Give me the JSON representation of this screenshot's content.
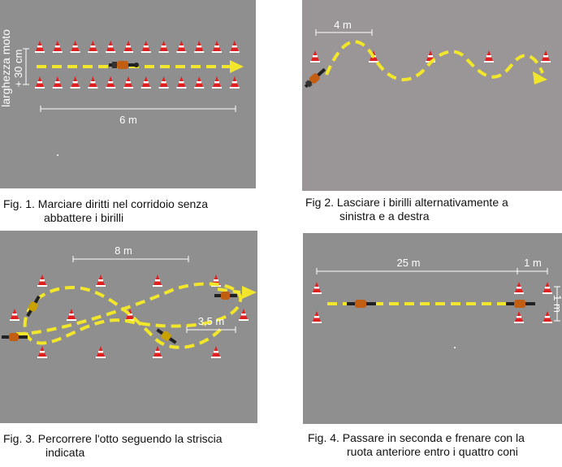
{
  "figures": [
    {
      "id": "fig1",
      "caption_line1": "Fig. 1. Marciare diritti nel corridoio senza",
      "caption_line2": "abbattere i birilli",
      "labels": {
        "width_label": "larghezza moto",
        "width_plus": "+ 30 cm",
        "length": "6 m"
      }
    },
    {
      "id": "fig2",
      "caption_line1": "Fig 2. Lasciare i birilli alternativamente a",
      "caption_line2": "sinistra e a destra",
      "labels": {
        "spacing": "4 m"
      }
    },
    {
      "id": "fig3",
      "caption_line1": "Fig. 3. Percorrere l'otto seguendo la striscia",
      "caption_line2": "indicata",
      "labels": {
        "length": "8 m",
        "width": "3,5 m"
      }
    },
    {
      "id": "fig4",
      "caption_line1": "Fig. 4. Passare in seconda e frenare con la",
      "caption_line2": "ruota anteriore entro i quattro coni",
      "labels": {
        "distance": "25 m",
        "box_length": "1 m",
        "box_width": "1 m"
      }
    }
  ],
  "colors": {
    "ground": "#8f8f8f",
    "path": "#f2e62a",
    "cone_red": "#e02020",
    "cone_white": "#ffffff",
    "dimension": "#ffffff"
  }
}
